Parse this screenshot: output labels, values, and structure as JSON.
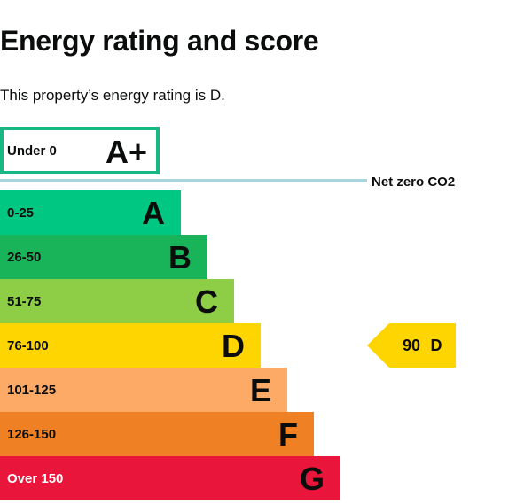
{
  "page": {
    "title": "Energy rating and score",
    "summary": "This property’s energy rating is D."
  },
  "chart_data": {
    "type": "bar",
    "top_band": {
      "range": "Under 0",
      "letter": "A+",
      "color": "#17b883"
    },
    "net_zero_label": "Net zero CO2",
    "net_zero_line_color": "#a8d4dc",
    "bands": [
      {
        "range": "0-25",
        "letter": "A",
        "color": "#00c781"
      },
      {
        "range": "26-50",
        "letter": "B",
        "color": "#19b459"
      },
      {
        "range": "51-75",
        "letter": "C",
        "color": "#8dce46"
      },
      {
        "range": "76-100",
        "letter": "D",
        "color": "#ffd500"
      },
      {
        "range": "101-125",
        "letter": "E",
        "color": "#fcaa65"
      },
      {
        "range": "126-150",
        "letter": "F",
        "color": "#ef8023"
      },
      {
        "range": "Over 150",
        "letter": "G",
        "color": "#e9153b"
      }
    ],
    "current": {
      "score": "90",
      "letter": "D",
      "band_index": 3,
      "color": "#ffd500"
    }
  }
}
